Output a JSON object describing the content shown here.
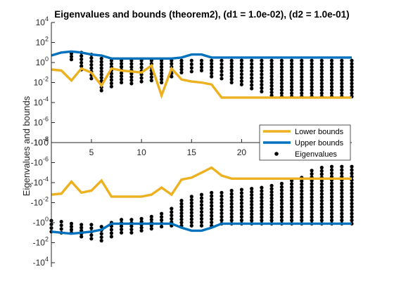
{
  "chart_data": {
    "type": "line",
    "title": "Eigenvalues and bounds (theorem2), (d1 = 1.0e-02), (d2 = 1.0e-01)",
    "xlabel": "",
    "ylabel": "Eigenvalues and bounds",
    "xlim": [
      1,
      31
    ],
    "ylim_exponent": [
      -4,
      4
    ],
    "y_scale": "symmetric-log (magnitude exponents shown, negative half mirrored)",
    "x_ticks": [
      {
        "value": 5,
        "label": "5"
      },
      {
        "value": 10,
        "label": "10"
      },
      {
        "value": 15,
        "label": "15"
      },
      {
        "value": 20,
        "label": "20"
      }
    ],
    "y_ticks": [
      {
        "exp": 4,
        "label": "10^4",
        "base": "10",
        "power": "4"
      },
      {
        "exp": 2,
        "label": "10^2",
        "base": "10",
        "power": "2"
      },
      {
        "exp": 0,
        "label": "10^0",
        "base": "10",
        "power": "0"
      },
      {
        "exp": -2,
        "label": "10^-2",
        "base": "10",
        "power": "-2"
      },
      {
        "exp": -4,
        "label": "10^-4",
        "base": "10",
        "power": "-4"
      },
      {
        "exp": -6,
        "label": "10^-6",
        "base": "10",
        "power": "-6"
      },
      {
        "exp": -8,
        "label": "10^-8",
        "base": "10",
        "power": "-8"
      },
      {
        "exp": 0,
        "label": "0",
        "base": "0",
        "power": "",
        "zero": true
      },
      {
        "exp": -8,
        "label": "-10^-8",
        "base": "-10",
        "power": "-8",
        "neg": true
      },
      {
        "exp": -6,
        "label": "-10^-6",
        "base": "-10",
        "power": "-6",
        "neg": true
      },
      {
        "exp": -4,
        "label": "-10^-4",
        "base": "-10",
        "power": "-4",
        "neg": true
      },
      {
        "exp": -2,
        "label": "-10^-2",
        "base": "-10",
        "power": "-2",
        "neg": true
      },
      {
        "exp": 0,
        "label": "-10^0",
        "base": "-10",
        "power": "0",
        "neg": true
      },
      {
        "exp": 2,
        "label": "-10^2",
        "base": "-10",
        "power": "2",
        "neg": true
      },
      {
        "exp": 4,
        "label": "-10^4",
        "base": "-10",
        "power": "4",
        "neg": true
      }
    ],
    "legend": {
      "placement": "center-right",
      "entries": [
        "Lower bounds",
        "Upper bounds",
        "Eigenvalues"
      ]
    },
    "colors": {
      "lower": "#EDB120",
      "upper": "#0072BD",
      "eigen": "#000000"
    },
    "series": [
      {
        "name": "Lower bounds",
        "part": "positive",
        "x": [
          1,
          2,
          3,
          4,
          5,
          6,
          7,
          8,
          9,
          10,
          11,
          12,
          13,
          14,
          15,
          16,
          17,
          18,
          19,
          20,
          21,
          22,
          23,
          24,
          25,
          26,
          27,
          28,
          29,
          30,
          31
        ],
        "y_exp": [
          -0.7,
          -0.8,
          -1.8,
          -0.6,
          -1.0,
          -2.3,
          -0.6,
          -0.8,
          -0.9,
          -1.0,
          -0.3,
          -3.3,
          -0.6,
          -1.7,
          -1.9,
          -2.0,
          -2.2,
          -3.5,
          -3.5,
          -3.5,
          -3.5,
          -3.5,
          -3.5,
          -3.5,
          -3.5,
          -3.5,
          -3.5,
          -3.5,
          -3.5,
          -3.5,
          -3.5
        ]
      },
      {
        "name": "Upper bounds",
        "part": "positive",
        "x": [
          1,
          2,
          3,
          4,
          5,
          6,
          7,
          8,
          9,
          10,
          11,
          12,
          13,
          14,
          15,
          16,
          17,
          18,
          19,
          20,
          21,
          22,
          23,
          24,
          25,
          26,
          27,
          28,
          29,
          30,
          31
        ],
        "y_exp": [
          0.7,
          1.0,
          1.1,
          1.0,
          0.8,
          0.7,
          0.4,
          0.4,
          0.4,
          0.4,
          0.4,
          0.4,
          0.4,
          0.5,
          0.8,
          0.8,
          0.5,
          0.5,
          0.5,
          0.5,
          0.5,
          0.5,
          0.5,
          0.5,
          0.5,
          0.5,
          0.5,
          0.5,
          0.5,
          0.5,
          0.5
        ]
      },
      {
        "name": "Lower bounds",
        "part": "negative",
        "x": [
          1,
          2,
          3,
          4,
          5,
          6,
          7,
          8,
          9,
          10,
          11,
          12,
          13,
          14,
          15,
          16,
          17,
          18,
          19,
          20,
          21,
          22,
          23,
          24,
          25,
          26,
          27,
          28,
          29,
          30,
          31
        ],
        "y_exp": [
          -2.8,
          -2.9,
          -4.1,
          -3.0,
          -3.2,
          -4.2,
          -2.6,
          -2.6,
          -2.6,
          -2.6,
          -2.8,
          -3.5,
          -2.8,
          -4.3,
          -4.5,
          -5.0,
          -5.5,
          -4.7,
          -4.4,
          -4.4,
          -4.4,
          -4.4,
          -4.4,
          -4.4,
          -4.4,
          -4.4,
          -4.4,
          -4.4,
          -4.4,
          -4.4,
          -4.4
        ]
      },
      {
        "name": "Upper bounds",
        "part": "negative",
        "x": [
          1,
          2,
          3,
          4,
          5,
          6,
          7,
          8,
          9,
          10,
          11,
          12,
          13,
          14,
          15,
          16,
          17,
          18,
          19,
          20,
          21,
          22,
          23,
          24,
          25,
          26,
          27,
          28,
          29,
          30,
          31
        ],
        "y_exp": [
          0.9,
          1.0,
          1.1,
          1.0,
          0.9,
          0.7,
          0.1,
          0.1,
          0.1,
          0.1,
          0.1,
          0.1,
          0.1,
          0.5,
          0.8,
          0.8,
          0.5,
          0.1,
          0.1,
          0.1,
          0.1,
          0.1,
          0.1,
          0.1,
          0.1,
          0.1,
          0.1,
          0.1,
          0.1,
          0.1,
          0.1
        ]
      }
    ],
    "eigenvalues_positive": {
      "name": "Eigenvalues",
      "columns": [
        {
          "x": 3,
          "from": 0.9,
          "to": 0.3
        },
        {
          "x": 4,
          "from": 1.0,
          "to": -0.7
        },
        {
          "x": 5,
          "from": 0.8,
          "to": -1.6
        },
        {
          "x": 6,
          "from": 0.4,
          "to": -2.8
        },
        {
          "x": 7,
          "from": 0.2,
          "to": -2.4
        },
        {
          "x": 8,
          "from": 0.2,
          "to": -2.0
        },
        {
          "x": 9,
          "from": 0.2,
          "to": -2.1
        },
        {
          "x": 10,
          "from": 0.2,
          "to": -1.9
        },
        {
          "x": 11,
          "from": 0.2,
          "to": -1.8
        },
        {
          "x": 12,
          "from": 0.2,
          "to": -2.0
        },
        {
          "x": 13,
          "from": 0.2,
          "to": -1.4
        },
        {
          "x": 14,
          "from": 0.2,
          "to": -1.0
        },
        {
          "x": 15,
          "from": 0.2,
          "to": -0.9
        },
        {
          "x": 16,
          "from": 0.2,
          "to": -0.8
        },
        {
          "x": 17,
          "from": 0.2,
          "to": -1.4
        },
        {
          "x": 18,
          "from": 0.2,
          "to": -1.6
        },
        {
          "x": 19,
          "from": 0.2,
          "to": -2.0
        },
        {
          "x": 20,
          "from": 0.2,
          "to": -2.2
        },
        {
          "x": 21,
          "from": 0.2,
          "to": -2.6
        },
        {
          "x": 22,
          "from": 0.2,
          "to": -2.9
        },
        {
          "x": 23,
          "from": 0.2,
          "to": -3.3
        },
        {
          "x": 24,
          "from": 0.2,
          "to": -3.4
        },
        {
          "x": 25,
          "from": 0.2,
          "to": -3.4
        },
        {
          "x": 26,
          "from": 0.2,
          "to": -3.4
        },
        {
          "x": 27,
          "from": 0.2,
          "to": -3.4
        },
        {
          "x": 28,
          "from": 0.2,
          "to": -3.4
        },
        {
          "x": 29,
          "from": 0.2,
          "to": -3.4
        },
        {
          "x": 30,
          "from": 0.2,
          "to": -3.4
        },
        {
          "x": 31,
          "from": 0.2,
          "to": -3.4
        }
      ]
    },
    "eigenvalues_negative": {
      "name": "Eigenvalues",
      "columns": [
        {
          "x": 1,
          "from": -0.2,
          "to": 0.9
        },
        {
          "x": 2,
          "from": -0.1,
          "to": 1.0
        },
        {
          "x": 3,
          "from": 0.1,
          "to": 1.0
        },
        {
          "x": 4,
          "from": 0.2,
          "to": 1.4
        },
        {
          "x": 5,
          "from": 0.2,
          "to": 1.6
        },
        {
          "x": 6,
          "from": 0.4,
          "to": 1.8
        },
        {
          "x": 7,
          "from": 0.0,
          "to": 1.4
        },
        {
          "x": 8,
          "from": -0.3,
          "to": 1.0
        },
        {
          "x": 9,
          "from": -0.3,
          "to": 1.0
        },
        {
          "x": 10,
          "from": -0.4,
          "to": 0.8
        },
        {
          "x": 11,
          "from": -0.6,
          "to": 0.6
        },
        {
          "x": 12,
          "from": -0.9,
          "to": 0.4
        },
        {
          "x": 13,
          "from": -1.4,
          "to": 0.3
        },
        {
          "x": 14,
          "from": -2.2,
          "to": 0.3
        },
        {
          "x": 15,
          "from": -2.6,
          "to": 0.3
        },
        {
          "x": 16,
          "from": -2.8,
          "to": 0.3
        },
        {
          "x": 17,
          "from": -3.0,
          "to": 0.3
        },
        {
          "x": 18,
          "from": -3.0,
          "to": 0.1
        },
        {
          "x": 19,
          "from": -3.2,
          "to": 0.1
        },
        {
          "x": 20,
          "from": -3.3,
          "to": 0.1
        },
        {
          "x": 21,
          "from": -3.4,
          "to": 0.1
        },
        {
          "x": 22,
          "from": -3.5,
          "to": 0.1
        },
        {
          "x": 23,
          "from": -3.7,
          "to": 0.1
        },
        {
          "x": 24,
          "from": -3.9,
          "to": 0.1
        },
        {
          "x": 25,
          "from": -4.2,
          "to": 0.1
        },
        {
          "x": 26,
          "from": -4.5,
          "to": 0.1
        },
        {
          "x": 27,
          "from": -5.2,
          "to": 0.1
        },
        {
          "x": 28,
          "from": -5.5,
          "to": 0.1
        },
        {
          "x": 29,
          "from": -5.6,
          "to": 0.1
        },
        {
          "x": 30,
          "from": -5.6,
          "to": 0.1
        },
        {
          "x": 31,
          "from": -5.6,
          "to": 0.1
        }
      ]
    }
  }
}
